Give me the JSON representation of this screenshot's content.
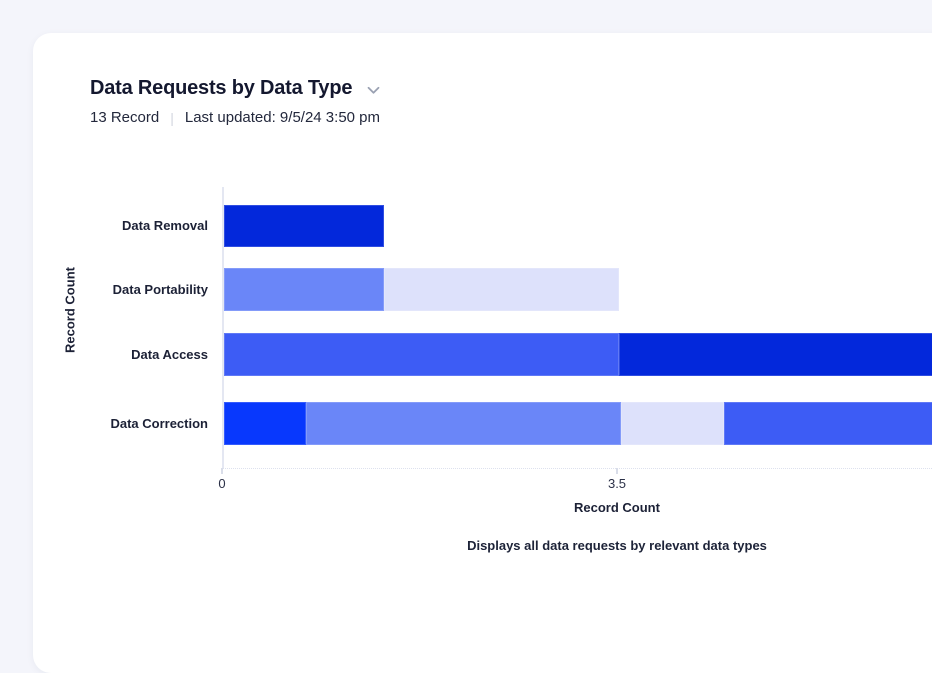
{
  "theme": {
    "page_background": "#F4F5FB",
    "card_background": "#FFFFFF",
    "palette": {
      "dark_blue": "#0328DB",
      "royal_blue": "#3D5CF5",
      "periwinkle": "#6A86F8",
      "lavender": "#DDE1FB",
      "bright_blue": "#0838FD"
    }
  },
  "header": {
    "title": "Data Requests by Data Type",
    "chevron_icon": "chevron-down-icon",
    "record_count_text": "13 Record",
    "divider": "|",
    "last_updated_text": "Last updated: 9/5/24 3:50 pm"
  },
  "chart_data": {
    "type": "bar",
    "orientation": "horizontal",
    "stacked": true,
    "title": "Data Requests by Data Type",
    "xlabel": "Record Count",
    "ylabel": "Record Count",
    "caption": "Displays all data requests by relevant data types",
    "xlim": [
      0,
      7
    ],
    "xticks": [
      0,
      3.5
    ],
    "xtick_labels": [
      "0",
      "3.5"
    ],
    "grid": false,
    "legend": "none",
    "note": "right side of chart clipped by viewport",
    "categories": [
      "Data Removal",
      "Data Portability",
      "Data Access",
      "Data Correction"
    ],
    "rows": [
      {
        "category": "Data Removal",
        "segments": [
          {
            "value": 1.42,
            "color": "#0328DB"
          }
        ]
      },
      {
        "category": "Data Portability",
        "segments": [
          {
            "value": 1.42,
            "color": "#6A86F8"
          },
          {
            "value": 2.08,
            "color": "#DDE1FB"
          }
        ]
      },
      {
        "category": "Data Access",
        "segments": [
          {
            "value": 3.5,
            "color": "#3D5CF5"
          },
          {
            "value": 3.5,
            "color": "#0328DB"
          }
        ]
      },
      {
        "category": "Data Correction",
        "segments": [
          {
            "value": 0.73,
            "color": "#0838FD"
          },
          {
            "value": 2.79,
            "color": "#6A86F8"
          },
          {
            "value": 0.91,
            "color": "#DDE1FB"
          },
          {
            "value": 2.57,
            "color": "#3D5CF5"
          }
        ]
      }
    ]
  }
}
